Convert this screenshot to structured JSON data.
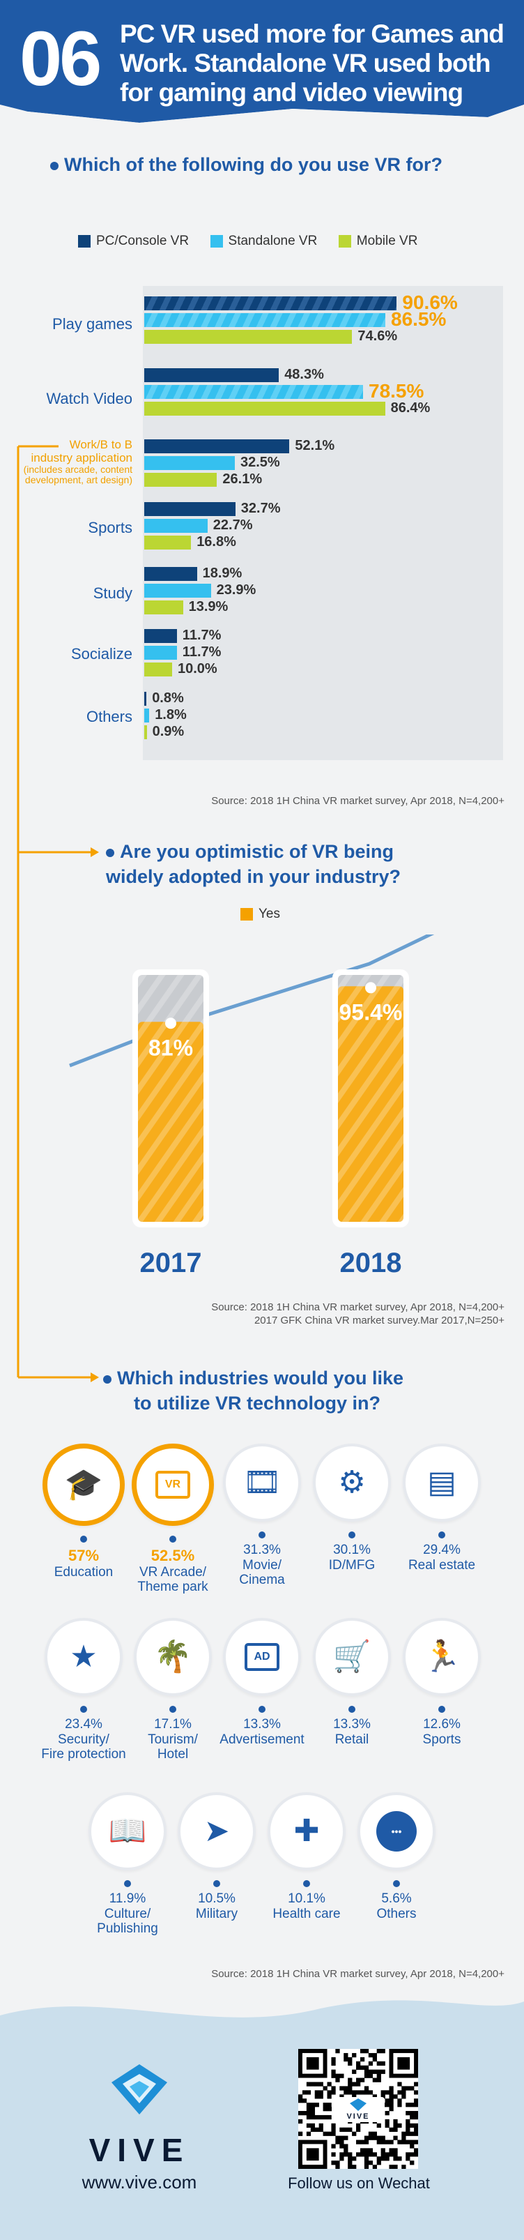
{
  "header": {
    "number": "06",
    "title_lines": [
      "PC VR used more for Games and",
      "Work. Standalone VR used both",
      "for gaming and video viewing"
    ]
  },
  "colors": {
    "brand_blue": "#1f5aa6",
    "pc_console": "#0e4279",
    "standalone": "#35c0ef",
    "mobile": "#bbd633",
    "accent": "#f5a100"
  },
  "q1": {
    "question": "Which of the following do you use VR for?",
    "legend": [
      "PC/Console VR",
      "Standalone VR",
      "Mobile VR"
    ],
    "category_lines": [
      [
        "Play games"
      ],
      [
        "Watch Video"
      ],
      [
        "Work/B to B",
        "industry application",
        "(includes arcade, content",
        "development, art design)"
      ],
      [
        "Sports"
      ],
      [
        "Study"
      ],
      [
        "Socialize"
      ],
      [
        "Others"
      ]
    ],
    "source": "Source: 2018 1H China VR market survey, Apr 2018, N=4,200+"
  },
  "chart_data": [
    {
      "type": "bar",
      "title": "Which of the following do you use VR for?",
      "categories": [
        "Play games",
        "Watch Video",
        "Work/B to B industry application",
        "Sports",
        "Study",
        "Socialize",
        "Others"
      ],
      "series": [
        {
          "name": "PC/Console VR",
          "values": [
            90.6,
            48.3,
            52.1,
            32.7,
            18.9,
            11.7,
            0.8
          ]
        },
        {
          "name": "Standalone VR",
          "values": [
            86.5,
            78.5,
            32.5,
            22.7,
            23.9,
            11.7,
            1.8
          ]
        },
        {
          "name": "Mobile VR",
          "values": [
            74.6,
            86.4,
            26.1,
            16.8,
            13.9,
            10.0,
            0.9
          ]
        }
      ],
      "labels": [
        [
          "90.6%",
          "86.5%",
          "74.6%"
        ],
        [
          "48.3%",
          "78.5%",
          "86.4%"
        ],
        [
          "52.1%",
          "32.5%",
          "26.1%"
        ],
        [
          "32.7%",
          "22.7%",
          "16.8%"
        ],
        [
          "18.9%",
          "23.9%",
          "13.9%"
        ],
        [
          "11.7%",
          "11.7%",
          "10.0%"
        ],
        [
          "0.8%",
          "1.8%",
          "0.9%"
        ]
      ],
      "orientation": "horizontal",
      "xlim": [
        0,
        100
      ]
    },
    {
      "type": "bar",
      "title": "Are you optimistic of VR being widely adopted in your industry?",
      "categories": [
        "2017",
        "2018"
      ],
      "series": [
        {
          "name": "Yes",
          "values": [
            81,
            95.4
          ]
        }
      ],
      "labels": [
        "81%",
        "95.4%"
      ],
      "ylim": [
        0,
        100
      ]
    },
    {
      "type": "table",
      "title": "Which industries would you like to utilize VR technology in?",
      "categories": [
        "Education",
        "VR Arcade/Theme park",
        "Movie/Cinema",
        "ID/MFG",
        "Real estate",
        "Security/Fire protection",
        "Tourism/Hotel",
        "Advertisement",
        "Retail",
        "Sports",
        "Culture/Publishing",
        "Military",
        "Health care",
        "Others"
      ],
      "values": [
        57,
        52.5,
        31.3,
        30.1,
        29.4,
        23.4,
        17.1,
        13.3,
        13.3,
        12.6,
        11.9,
        10.5,
        10.1,
        5.6
      ]
    }
  ],
  "q2": {
    "question_lines": [
      "Are you optimistic of VR being",
      "widely adopted in your industry?"
    ],
    "legend": "Yes",
    "years": [
      "2017",
      "2018"
    ],
    "labels": [
      "81%",
      "95.4%"
    ],
    "source_lines": [
      "Source: 2018 1H China VR market survey, Apr 2018, N=4,200+",
      "2017 GFK China VR market survey.Mar 2017,N=250+"
    ]
  },
  "q3": {
    "question_lines": [
      "Which industries would you like",
      "to utilize VR technology in?"
    ],
    "industries": [
      {
        "pct": "57%",
        "name_lines": [
          "Education"
        ],
        "icon": "graduation-cap-icon",
        "hl": true
      },
      {
        "pct": "52.5%",
        "name_lines": [
          "VR Arcade/",
          "Theme park"
        ],
        "icon": "arcade-store-icon",
        "hl": true,
        "icon_text": "VR"
      },
      {
        "pct": "31.3%",
        "name_lines": [
          "Movie/",
          "Cinema"
        ],
        "icon": "film-reel-icon"
      },
      {
        "pct": "30.1%",
        "name_lines": [
          "ID/MFG"
        ],
        "icon": "gears-icon"
      },
      {
        "pct": "29.4%",
        "name_lines": [
          "Real estate"
        ],
        "icon": "building-icon"
      },
      {
        "pct": "23.4%",
        "name_lines": [
          "Security/",
          "Fire protection"
        ],
        "icon": "shield-star-icon"
      },
      {
        "pct": "17.1%",
        "name_lines": [
          "Tourism/",
          "Hotel"
        ],
        "icon": "palm-tree-icon"
      },
      {
        "pct": "13.3%",
        "name_lines": [
          "Advertisement"
        ],
        "icon": "ad-board-icon",
        "icon_text": "AD"
      },
      {
        "pct": "13.3%",
        "name_lines": [
          "Retail"
        ],
        "icon": "shopping-cart-icon"
      },
      {
        "pct": "12.6%",
        "name_lines": [
          "Sports"
        ],
        "icon": "runner-icon"
      },
      {
        "pct": "11.9%",
        "name_lines": [
          "Culture/",
          "Publishing"
        ],
        "icon": "book-icon"
      },
      {
        "pct": "10.5%",
        "name_lines": [
          "Military"
        ],
        "icon": "bullet-icon"
      },
      {
        "pct": "10.1%",
        "name_lines": [
          "Health care"
        ],
        "icon": "medicine-bottle-icon"
      },
      {
        "pct": "5.6%",
        "name_lines": [
          "Others"
        ],
        "icon": "ellipsis-icon"
      }
    ],
    "source": "Source: 2018 1H China VR market survey, Apr 2018, N=4,200+"
  },
  "footer": {
    "brand": "VIVE",
    "url": "www.vive.com",
    "qr_brand": "VIVE",
    "wechat": "Follow us on Wechat"
  }
}
